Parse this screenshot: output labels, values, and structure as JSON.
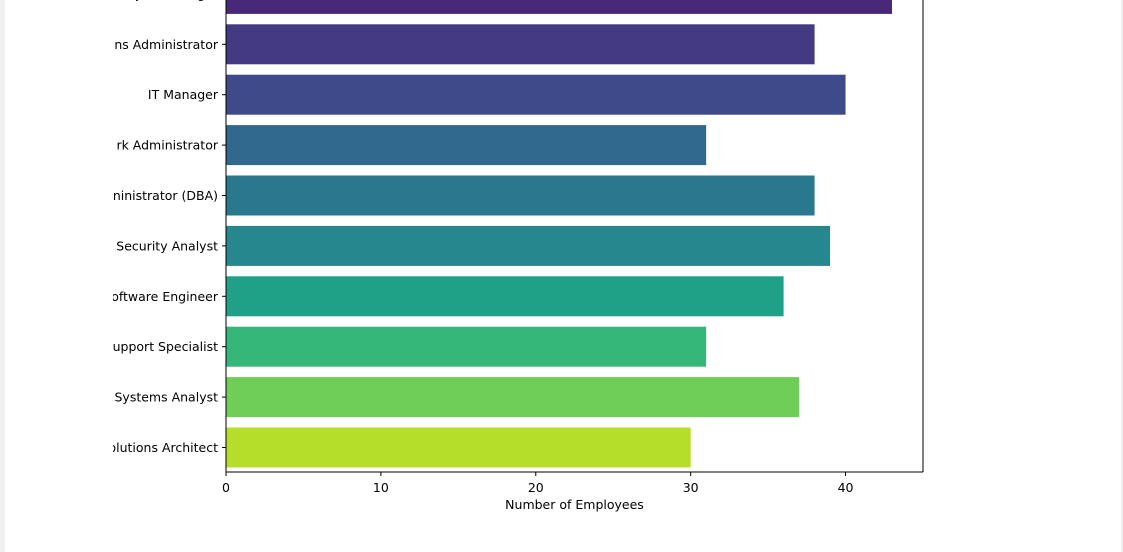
{
  "chart_data": {
    "type": "bar",
    "orientation": "horizontal",
    "categories": [
      "IT Project Manager",
      "ns Administrator",
      "IT Manager",
      "rk Administrator",
      "ninistrator (DBA)",
      "Security Analyst",
      "oftware Engineer",
      "upport Specialist",
      "Systems Analyst",
      "olutions Architect"
    ],
    "values": [
      43,
      38,
      40,
      31,
      38,
      39,
      36,
      31,
      37,
      30
    ],
    "colors": [
      "#482878",
      "#443983",
      "#3e4a89",
      "#31688e",
      "#2a788e",
      "#26888e",
      "#1fa187",
      "#35b779",
      "#6ece58",
      "#b5de2b"
    ],
    "xlabel": "Number of Employees",
    "ylabel": "",
    "title": "",
    "xlim": [
      0,
      45
    ],
    "xticks": [
      0,
      10,
      20,
      30,
      40
    ],
    "grid": false
  }
}
